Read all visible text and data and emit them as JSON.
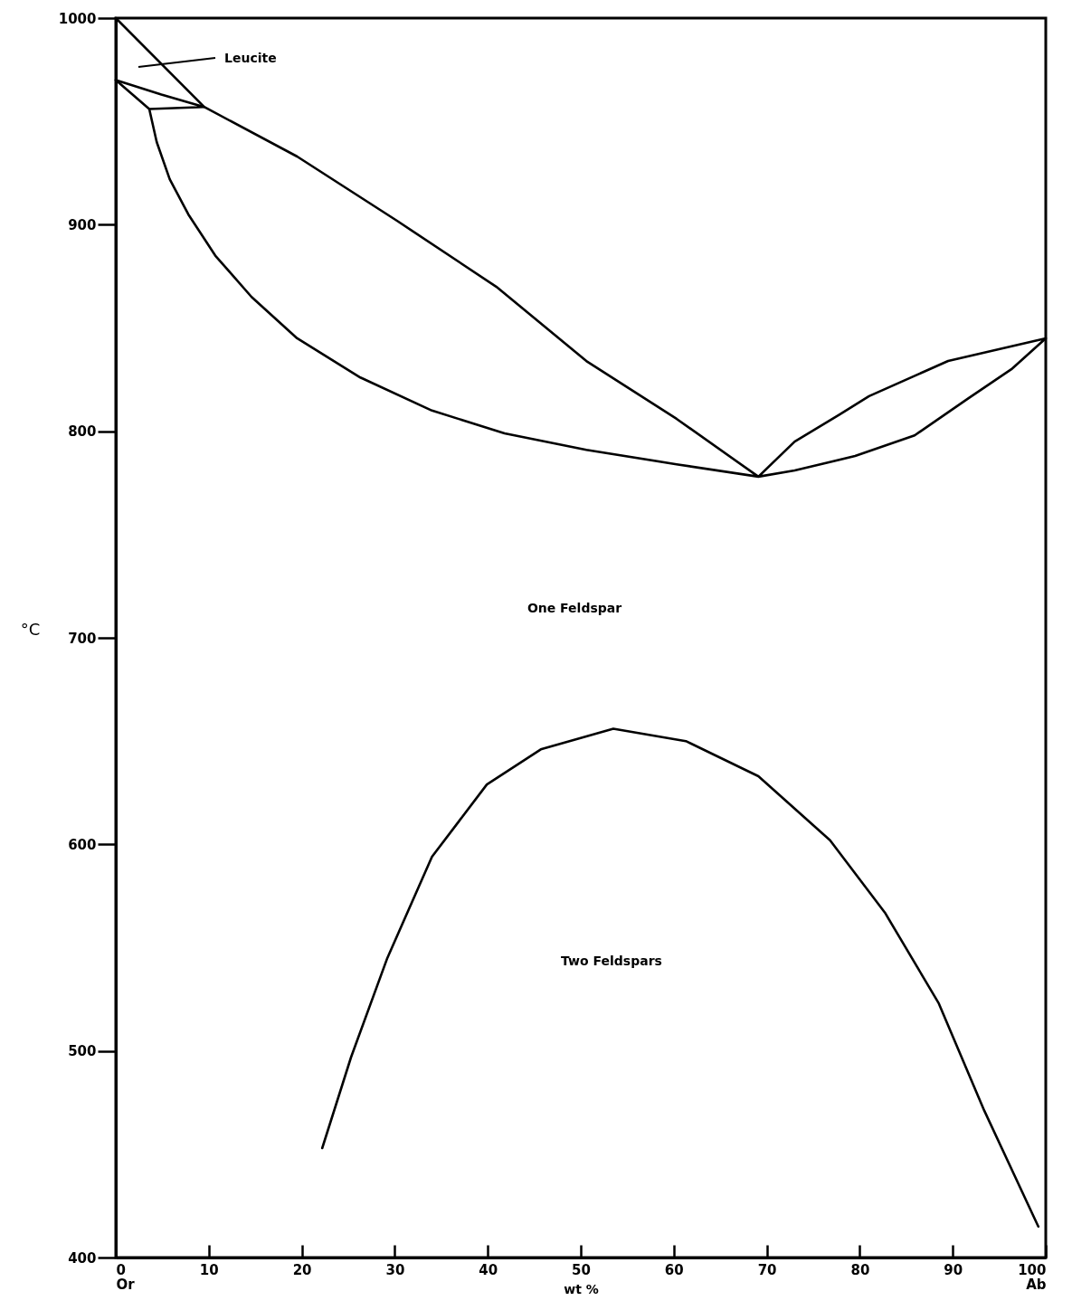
{
  "chart_data": {
    "type": "line",
    "xlabel": "wt %",
    "ylabel": "°C",
    "xlim": [
      0,
      100
    ],
    "ylim": [
      400,
      1000
    ],
    "xticks": [
      {
        "value": 0,
        "label": "0\nOr"
      },
      10,
      20,
      30,
      40,
      50,
      60,
      70,
      80,
      90,
      {
        "value": 100,
        "label": "100\nAb"
      }
    ],
    "yticks": [
      400,
      500,
      600,
      700,
      800,
      900,
      1000
    ],
    "line_style": "solid",
    "series": [
      {
        "type": "line",
        "color": "#000000",
        "x": [
          0,
          3.6,
          4.4,
          5.8,
          7.8,
          10.7,
          14.6,
          19.5,
          26.3,
          34.0,
          41.8,
          50.6,
          60.3,
          69.1,
          73,
          79.5,
          85.9,
          91.7,
          96.3,
          100,
          89.5,
          81,
          77.8,
          73,
          69.1,
          60.3,
          50.6,
          40.9,
          30.2,
          19.5,
          9.5,
          0
        ],
        "values": [
          970,
          956,
          940,
          922,
          905,
          885,
          865,
          845,
          826,
          810,
          799,
          791,
          784,
          778,
          781,
          788,
          798,
          816,
          830,
          845,
          834,
          817,
          808,
          795,
          778,
          806,
          834,
          870,
          902,
          933,
          957,
          1000
        ]
      },
      {
        "type": "line",
        "color": "#000000",
        "x": [
          0,
          4.9,
          9.5,
          3.6
        ],
        "values": [
          970,
          963,
          957,
          956
        ]
      },
      {
        "type": "line",
        "color": "#000000",
        "x": [
          22.2,
          25.3,
          29.2,
          34.0,
          39.9,
          45.7,
          53.5,
          61.3,
          69.1,
          76.8,
          82.7,
          88.5,
          93.4,
          99.2
        ],
        "values": [
          453,
          497,
          545,
          594,
          629,
          646,
          656,
          650,
          633,
          602,
          567,
          523,
          471,
          415
        ]
      }
    ],
    "annotations": [
      "Leucite",
      "One Feldspar",
      "Two Feldspars"
    ]
  }
}
